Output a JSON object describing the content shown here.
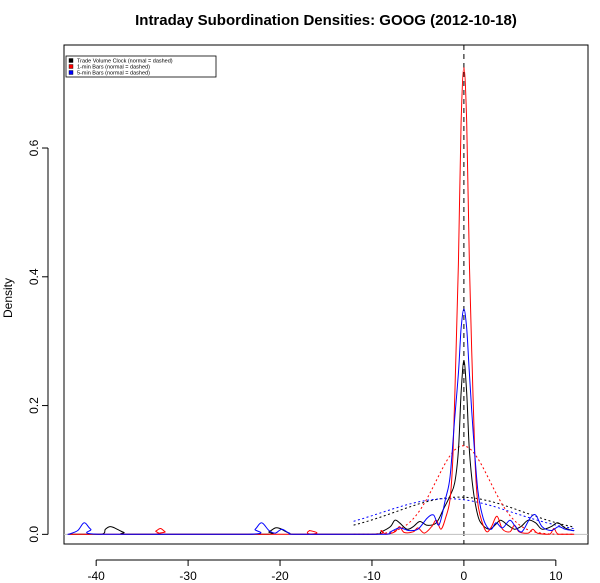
{
  "chart_data": {
    "type": "line",
    "title": "Intraday Subordination Densities: GOOG (2012-10-18)",
    "xlabel": "",
    "ylabel": "Density",
    "xlim": [
      -43.5,
      13.5
    ],
    "ylim": [
      -0.015,
      0.76
    ],
    "x_ticks": [
      -40,
      -30,
      -20,
      -10,
      0,
      10
    ],
    "y_ticks": [
      0.0,
      0.2,
      0.4,
      0.6
    ],
    "legend_position": "top-left",
    "reference_lines": [
      {
        "type": "vertical",
        "x": 0,
        "style": "dashed",
        "color": "#000000"
      },
      {
        "type": "horizontal",
        "y": 0,
        "style": "solid",
        "color": "#bfbfbf"
      }
    ],
    "series": [
      {
        "name": "Trade Volume Clock (normal = dashed)",
        "color": "#000000",
        "kde_points": [
          [
            -39.5,
            0.0
          ],
          [
            -39.0,
            0.008
          ],
          [
            -38.5,
            0.012
          ],
          [
            -38.0,
            0.01
          ],
          [
            -37.0,
            0.003
          ],
          [
            -36.0,
            0.0
          ],
          [
            -22.0,
            0.0
          ],
          [
            -21.2,
            0.004
          ],
          [
            -20.5,
            0.01
          ],
          [
            -20.0,
            0.009
          ],
          [
            -19.0,
            0.002
          ],
          [
            -18.0,
            0.0
          ],
          [
            -10.0,
            0.0
          ],
          [
            -9.0,
            0.004
          ],
          [
            -8.0,
            0.012
          ],
          [
            -7.5,
            0.022
          ],
          [
            -7.0,
            0.018
          ],
          [
            -6.2,
            0.008
          ],
          [
            -5.5,
            0.012
          ],
          [
            -4.8,
            0.02
          ],
          [
            -4.0,
            0.014
          ],
          [
            -3.0,
            0.018
          ],
          [
            -2.2,
            0.04
          ],
          [
            -1.5,
            0.06
          ],
          [
            -1.0,
            0.08
          ],
          [
            -0.6,
            0.13
          ],
          [
            -0.3,
            0.22
          ],
          [
            0.0,
            0.27
          ],
          [
            0.3,
            0.22
          ],
          [
            0.6,
            0.13
          ],
          [
            1.0,
            0.07
          ],
          [
            1.5,
            0.03
          ],
          [
            2.0,
            0.015
          ],
          [
            2.8,
            0.008
          ],
          [
            3.5,
            0.016
          ],
          [
            4.0,
            0.022
          ],
          [
            4.8,
            0.014
          ],
          [
            5.5,
            0.008
          ],
          [
            6.2,
            0.012
          ],
          [
            7.0,
            0.022
          ],
          [
            7.8,
            0.018
          ],
          [
            8.5,
            0.008
          ],
          [
            9.5,
            0.012
          ],
          [
            10.2,
            0.018
          ],
          [
            11.0,
            0.01
          ],
          [
            11.8,
            0.006
          ]
        ],
        "normal": {
          "mean": -0.5,
          "sd": 6.9
        }
      },
      {
        "name": "1-min Bars (normal = dashed)",
        "color": "#ff0000",
        "kde_points": [
          [
            -34.0,
            0.0
          ],
          [
            -33.5,
            0.005
          ],
          [
            -33.0,
            0.009
          ],
          [
            -32.5,
            0.004
          ],
          [
            -32.0,
            0.0
          ],
          [
            -17.2,
            0.0
          ],
          [
            -16.8,
            0.006
          ],
          [
            -16.4,
            0.0
          ],
          [
            -9.5,
            0.0
          ],
          [
            -9.0,
            0.006
          ],
          [
            -8.5,
            0.0
          ],
          [
            -7.5,
            0.004
          ],
          [
            -7.0,
            0.012
          ],
          [
            -6.5,
            0.003
          ],
          [
            -5.5,
            0.004
          ],
          [
            -5.0,
            0.01
          ],
          [
            -4.3,
            0.002
          ],
          [
            -3.5,
            0.012
          ],
          [
            -3.0,
            0.022
          ],
          [
            -2.5,
            0.008
          ],
          [
            -2.0,
            0.025
          ],
          [
            -1.5,
            0.055
          ],
          [
            -1.2,
            0.12
          ],
          [
            -0.9,
            0.26
          ],
          [
            -0.6,
            0.42
          ],
          [
            -0.3,
            0.64
          ],
          [
            0.0,
            0.725
          ],
          [
            0.3,
            0.64
          ],
          [
            0.6,
            0.42
          ],
          [
            0.9,
            0.26
          ],
          [
            1.2,
            0.12
          ],
          [
            1.5,
            0.05
          ],
          [
            2.0,
            0.018
          ],
          [
            2.5,
            0.004
          ],
          [
            3.0,
            0.012
          ],
          [
            3.6,
            0.028
          ],
          [
            4.2,
            0.008
          ],
          [
            5.0,
            0.004
          ],
          [
            5.5,
            0.014
          ],
          [
            6.0,
            0.004
          ],
          [
            7.0,
            0.002
          ],
          [
            7.5,
            0.008
          ],
          [
            8.0,
            0.002
          ],
          [
            9.3,
            0.0
          ],
          [
            9.8,
            0.009
          ],
          [
            10.3,
            0.0
          ]
        ],
        "normal": {
          "mean": -0.1,
          "sd": 2.9
        }
      },
      {
        "name": "5-min Bars (normal = dashed)",
        "color": "#0000ff",
        "kde_points": [
          [
            -43.0,
            0.0
          ],
          [
            -42.0,
            0.006
          ],
          [
            -41.3,
            0.018
          ],
          [
            -40.6,
            0.008
          ],
          [
            -39.5,
            0.0
          ],
          [
            -23.5,
            0.0
          ],
          [
            -22.7,
            0.008
          ],
          [
            -22.0,
            0.018
          ],
          [
            -21.2,
            0.006
          ],
          [
            -20.5,
            0.002
          ],
          [
            -19.8,
            0.008
          ],
          [
            -19.0,
            0.002
          ],
          [
            -18.0,
            0.0
          ],
          [
            -9.0,
            0.0
          ],
          [
            -8.0,
            0.004
          ],
          [
            -7.0,
            0.01
          ],
          [
            -6.0,
            0.006
          ],
          [
            -5.0,
            0.008
          ],
          [
            -4.0,
            0.025
          ],
          [
            -3.3,
            0.03
          ],
          [
            -2.7,
            0.015
          ],
          [
            -2.0,
            0.055
          ],
          [
            -1.5,
            0.09
          ],
          [
            -1.0,
            0.18
          ],
          [
            -0.6,
            0.25
          ],
          [
            -0.3,
            0.32
          ],
          [
            0.0,
            0.35
          ],
          [
            0.3,
            0.32
          ],
          [
            0.6,
            0.25
          ],
          [
            1.0,
            0.16
          ],
          [
            1.5,
            0.07
          ],
          [
            2.0,
            0.03
          ],
          [
            2.5,
            0.012
          ],
          [
            3.0,
            0.008
          ],
          [
            3.5,
            0.018
          ],
          [
            4.2,
            0.01
          ],
          [
            5.0,
            0.022
          ],
          [
            5.6,
            0.012
          ],
          [
            6.3,
            0.004
          ],
          [
            7.2,
            0.025
          ],
          [
            7.8,
            0.03
          ],
          [
            8.5,
            0.012
          ],
          [
            9.5,
            0.006
          ],
          [
            10.3,
            0.012
          ],
          [
            11.0,
            0.008
          ],
          [
            11.8,
            0.006
          ]
        ],
        "normal": {
          "mean": -1.8,
          "sd": 7.2
        }
      }
    ]
  }
}
